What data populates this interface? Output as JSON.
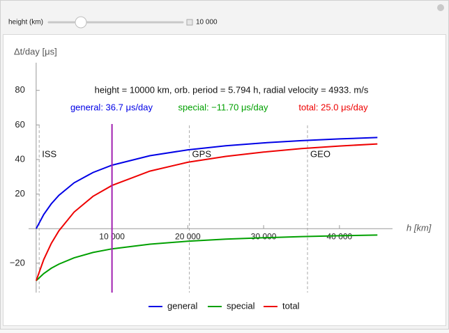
{
  "controls": {
    "label": "height (km)",
    "value": {
      "value": 10000,
      "label": "10 000"
    }
  },
  "chart_data": {
    "type": "line",
    "title": "height = 10000 km, orb. period = 5.794 h, radial velocity = 4933. m/s",
    "annotations": [
      {
        "text": "general: 36.7 μs/day",
        "color": "#0000e6"
      },
      {
        "text": "special: −11.70 μs/day",
        "color": "#00a000"
      },
      {
        "text": "total: 25.0 μs/day",
        "color": "#ee0000"
      }
    ],
    "x_label": "h [km]",
    "y_label": "Δt/day [μs]",
    "x": [
      0,
      1000,
      2000,
      3000,
      5000,
      7500,
      10000,
      15000,
      20000,
      25000,
      30000,
      35000,
      40000,
      45000
    ],
    "series": [
      {
        "name": "general",
        "color": "#0000e6",
        "values": [
          0,
          8.2,
          14.4,
          19.3,
          26.5,
          32.5,
          36.7,
          42.2,
          45.6,
          47.9,
          49.6,
          50.9,
          51.9,
          52.7
        ]
      },
      {
        "name": "special",
        "color": "#00a000",
        "values": [
          -30.1,
          -26.0,
          -22.9,
          -20.5,
          -16.9,
          -13.8,
          -11.7,
          -9.0,
          -7.3,
          -6.1,
          -5.3,
          -4.6,
          -4.1,
          -3.7
        ]
      },
      {
        "name": "total",
        "color": "#ee0000",
        "values": [
          -30.1,
          -17.8,
          -8.5,
          -1.2,
          9.6,
          18.7,
          25.0,
          33.3,
          38.4,
          41.8,
          44.3,
          46.3,
          47.8,
          49.0
        ]
      }
    ],
    "xlim": [
      -1000,
      47000
    ],
    "ylim": [
      -37,
      96
    ],
    "xticks": [
      {
        "value": 10000,
        "label": "10 000"
      },
      {
        "value": 20000,
        "label": "20 000"
      },
      {
        "value": 30000,
        "label": "30 000"
      },
      {
        "value": 40000,
        "label": "40 000"
      }
    ],
    "yticks": [
      {
        "value": -20,
        "label": "−20"
      },
      20,
      40,
      60,
      80
    ],
    "reference_lines": [
      {
        "label": "ISS",
        "x": 400
      },
      {
        "label": "GPS",
        "x": 20200
      },
      {
        "label": "GEO",
        "x": 35786
      }
    ],
    "marker_color": "#a020b0",
    "legend": "bottom"
  }
}
